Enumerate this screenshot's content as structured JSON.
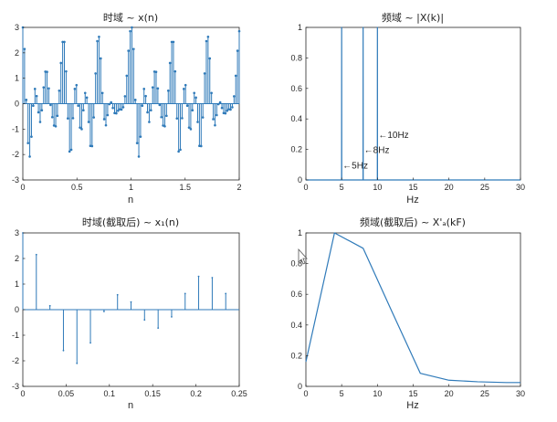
{
  "colors": {
    "series": "#2f7ab9",
    "axis": "#262626"
  },
  "cursor_icon": "mouse-pointer-icon",
  "chart_data": [
    {
      "id": "p1",
      "type": "stem",
      "title": "时域 ~ x(n)",
      "xlabel": "n",
      "xlim": [
        0,
        2
      ],
      "ylim": [
        -3,
        3
      ],
      "xticks": [
        0,
        0.5,
        1,
        1.5,
        2
      ],
      "xtick_labels": [
        "0",
        "0.5",
        "1",
        "1.5",
        "2"
      ],
      "yticks": [
        -3,
        -2,
        -1,
        0,
        1,
        2,
        3
      ],
      "ytick_labels": [
        "-3",
        "-2",
        "-1",
        "0",
        "1",
        "2",
        "3"
      ],
      "marker": "dot",
      "x": [
        0.0,
        0.016,
        0.032,
        0.048,
        0.064,
        0.08,
        0.096,
        0.112,
        0.128,
        0.144,
        0.16,
        0.176,
        0.192,
        0.208,
        0.224,
        0.24,
        0.256,
        0.272,
        0.288,
        0.304,
        0.32,
        0.336,
        0.352,
        0.368,
        0.384,
        0.4,
        0.416,
        0.432,
        0.448,
        0.464,
        0.48,
        0.496,
        0.512,
        0.528,
        0.544,
        0.56,
        0.576,
        0.592,
        0.608,
        0.624,
        0.64,
        0.656,
        0.672,
        0.688,
        0.704,
        0.72,
        0.736,
        0.752,
        0.768,
        0.784,
        0.8,
        0.816,
        0.832,
        0.848,
        0.864,
        0.88,
        0.896,
        0.912,
        0.928,
        0.944,
        0.96,
        0.976,
        0.992,
        1.008,
        1.024,
        1.04,
        1.056,
        1.072,
        1.088,
        1.104,
        1.12,
        1.136,
        1.152,
        1.168,
        1.184,
        1.2,
        1.216,
        1.232,
        1.248,
        1.264,
        1.28,
        1.296,
        1.312,
        1.328,
        1.344,
        1.36,
        1.376,
        1.392,
        1.408,
        1.424,
        1.44,
        1.456,
        1.472,
        1.488,
        1.504,
        1.52,
        1.536,
        1.552,
        1.568,
        1.584,
        1.6,
        1.616,
        1.632,
        1.648,
        1.664,
        1.68,
        1.696,
        1.712,
        1.728,
        1.744,
        1.76,
        1.776,
        1.792,
        1.808,
        1.824,
        1.84,
        1.856,
        1.872,
        1.888,
        1.904,
        1.92,
        1.936,
        1.952,
        1.968,
        1.984,
        2.0
      ],
      "y": [
        3.0,
        2.15,
        0.15,
        -1.55,
        -2.08,
        -1.3,
        -0.08,
        0.58,
        0.3,
        -0.34,
        -0.72,
        -0.26,
        0.64,
        1.26,
        1.25,
        0.6,
        -0.05,
        -0.53,
        -0.86,
        -0.89,
        -0.48,
        0.51,
        1.6,
        2.43,
        2.43,
        1.27,
        -0.58,
        -1.88,
        -1.81,
        -0.57,
        0.58,
        0.73,
        -0.08,
        -0.94,
        -1.0,
        -0.26,
        0.42,
        0.24,
        -0.72,
        -1.66,
        -1.67,
        -0.54,
        1.19,
        2.46,
        2.63,
        1.78,
        0.42,
        -0.61,
        -0.85,
        -0.45,
        -0.02,
        0.05,
        -0.17,
        -0.37,
        -0.38,
        -0.28,
        -0.22,
        -0.23,
        -0.14,
        0.29,
        1.1,
        2.08,
        2.85,
        3.0,
        2.15,
        0.15,
        -1.55,
        -2.08,
        -1.3,
        -0.08,
        0.58,
        0.3,
        -0.34,
        -0.72,
        -0.26,
        0.64,
        1.26,
        1.25,
        0.6,
        -0.05,
        -0.53,
        -0.86,
        -0.89,
        -0.48,
        0.51,
        1.6,
        2.43,
        2.43,
        1.27,
        -0.58,
        -1.88,
        -1.81,
        -0.57,
        0.58,
        0.73,
        -0.08,
        -0.94,
        -1.0,
        -0.26,
        0.42,
        0.24,
        -0.72,
        -1.66,
        -1.67,
        -0.54,
        1.19,
        2.46,
        2.63,
        1.78,
        0.42,
        -0.61,
        -0.85,
        -0.45,
        -0.02,
        0.05,
        -0.17,
        -0.37,
        -0.38,
        -0.28,
        -0.22,
        -0.23,
        -0.14,
        0.29,
        1.1,
        2.08,
        2.85
      ]
    },
    {
      "id": "p2",
      "type": "line",
      "title": "频域 ~ |X(k)|",
      "xlabel": "Hz",
      "xlim": [
        0,
        30
      ],
      "ylim": [
        0,
        1
      ],
      "xticks": [
        0,
        5,
        10,
        15,
        20,
        25,
        30
      ],
      "xtick_labels": [
        "0",
        "5",
        "10",
        "15",
        "20",
        "25",
        "30"
      ],
      "yticks": [
        0,
        0.2,
        0.4,
        0.6,
        0.8,
        1
      ],
      "ytick_labels": [
        "0",
        "0.2",
        "0.4",
        "0.6",
        "0.8",
        "1"
      ],
      "x": [
        0,
        4.99,
        5,
        5.01,
        7.99,
        8,
        8.01,
        9.99,
        10,
        10.01,
        30
      ],
      "y": [
        0,
        0,
        1,
        0,
        0,
        1,
        0,
        0,
        1,
        0,
        0
      ],
      "annotations": [
        {
          "text": "←10Hz",
          "x": 10,
          "y": 0.3
        },
        {
          "text": "←8Hz",
          "x": 8,
          "y": 0.2
        },
        {
          "text": "←5Hz",
          "x": 5,
          "y": 0.1
        }
      ]
    },
    {
      "id": "p3",
      "type": "stem",
      "title": "时域(截取后) ~ x₁(n)",
      "xlabel": "n",
      "xlim": [
        0,
        0.25
      ],
      "ylim": [
        -3,
        3
      ],
      "xticks": [
        0,
        0.05,
        0.1,
        0.15,
        0.2,
        0.25
      ],
      "xtick_labels": [
        "0",
        "0.05",
        "0.1",
        "0.15",
        "0.2",
        "0.25"
      ],
      "yticks": [
        -3,
        -2,
        -1,
        0,
        1,
        2,
        3
      ],
      "ytick_labels": [
        "-3",
        "-2",
        "-1",
        "0",
        "1",
        "2",
        "3"
      ],
      "marker": "none",
      "x": [
        0,
        0.0156,
        0.0313,
        0.0469,
        0.0625,
        0.0781,
        0.0938,
        0.1094,
        0.125,
        0.1406,
        0.1563,
        0.1719,
        0.1875,
        0.2031,
        0.2188,
        0.2344
      ],
      "y": [
        3.0,
        2.15,
        0.15,
        -1.6,
        -2.1,
        -1.3,
        -0.07,
        0.58,
        0.3,
        -0.4,
        -0.72,
        -0.28,
        0.63,
        1.3,
        1.25,
        0.63
      ]
    },
    {
      "id": "p4",
      "type": "line",
      "title": "频域(截取后) ~ X'ₐ(kF)",
      "xlabel": "Hz",
      "xlim": [
        0,
        30
      ],
      "ylim": [
        0,
        1
      ],
      "xticks": [
        0,
        5,
        10,
        15,
        20,
        25,
        30
      ],
      "xtick_labels": [
        "0",
        "5",
        "10",
        "15",
        "20",
        "25",
        "30"
      ],
      "yticks": [
        0,
        0.2,
        0.4,
        0.6,
        0.8,
        1
      ],
      "ytick_labels": [
        "0",
        "0.2",
        "0.4",
        "0.6",
        "0.8",
        "1"
      ],
      "x": [
        0,
        4,
        8,
        12,
        16,
        20,
        24,
        28,
        30
      ],
      "y": [
        0.16,
        1.0,
        0.9,
        0.49,
        0.085,
        0.04,
        0.03,
        0.025,
        0.025
      ]
    }
  ]
}
